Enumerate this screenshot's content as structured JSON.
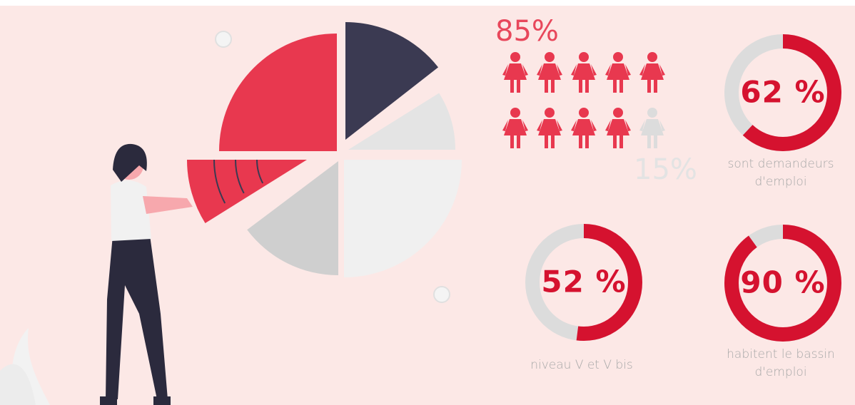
{
  "pictogram": {
    "main": {
      "value": 85,
      "label": "85%"
    },
    "rest": {
      "value": 15,
      "label": "15%"
    }
  },
  "gauges": [
    {
      "value": 62,
      "label": "62 %",
      "caption": [
        "sont demandeurs",
        "d'emploi"
      ]
    },
    {
      "value": 52,
      "label": "52 %",
      "caption": [
        "niveau V et V bis"
      ]
    },
    {
      "value": 90,
      "label": "90 %",
      "caption": [
        "habitent le bassin",
        "d'emploi"
      ]
    }
  ]
}
